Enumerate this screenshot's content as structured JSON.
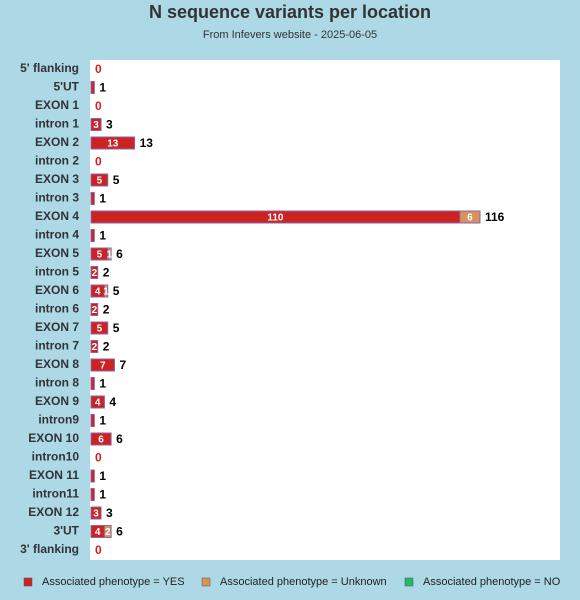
{
  "chart_data": {
    "type": "stacked-barh",
    "title": "N sequence variants per location",
    "subtitle": "From Infevers website - 2025-06-05",
    "categories": [
      "5' flanking",
      "5'UT",
      "EXON 1",
      "intron 1",
      "EXON 2",
      "intron 2",
      "EXON 3",
      "intron 3",
      "EXON 4",
      "intron 4",
      "EXON 5",
      "intron 5",
      "EXON 6",
      "intron 6",
      "EXON 7",
      "intron 7",
      "EXON 8",
      "intron 8",
      "EXON 9",
      "intron9",
      "EXON 10",
      "intron10",
      "EXON 11",
      "intron11",
      "EXON 12",
      "3'UT",
      "3' flanking"
    ],
    "series": [
      {
        "name": "Associated phenotype = YES",
        "color": "#cc2222",
        "values": [
          0,
          1,
          0,
          3,
          13,
          0,
          5,
          1,
          110,
          1,
          5,
          2,
          4,
          2,
          5,
          2,
          7,
          1,
          4,
          1,
          6,
          0,
          1,
          1,
          3,
          4,
          0
        ]
      },
      {
        "name": "Associated phenotype = Unknown",
        "color": "#d9925a",
        "values": [
          0,
          0,
          0,
          0,
          0,
          0,
          0,
          0,
          6,
          0,
          1,
          0,
          1,
          0,
          0,
          0,
          0,
          0,
          0,
          0,
          0,
          0,
          0,
          0,
          0,
          2,
          0
        ]
      },
      {
        "name": "Associated phenotype = NO",
        "color": "#22bb66",
        "values": [
          0,
          0,
          0,
          0,
          0,
          0,
          0,
          0,
          0,
          0,
          0,
          0,
          0,
          0,
          0,
          0,
          0,
          0,
          0,
          0,
          0,
          0,
          0,
          0,
          0,
          0,
          0
        ]
      }
    ],
    "totals": [
      0,
      1,
      0,
      3,
      13,
      0,
      5,
      1,
      116,
      1,
      6,
      2,
      5,
      2,
      5,
      2,
      7,
      1,
      4,
      1,
      6,
      0,
      1,
      1,
      3,
      6,
      0
    ],
    "legend": "bottom"
  }
}
